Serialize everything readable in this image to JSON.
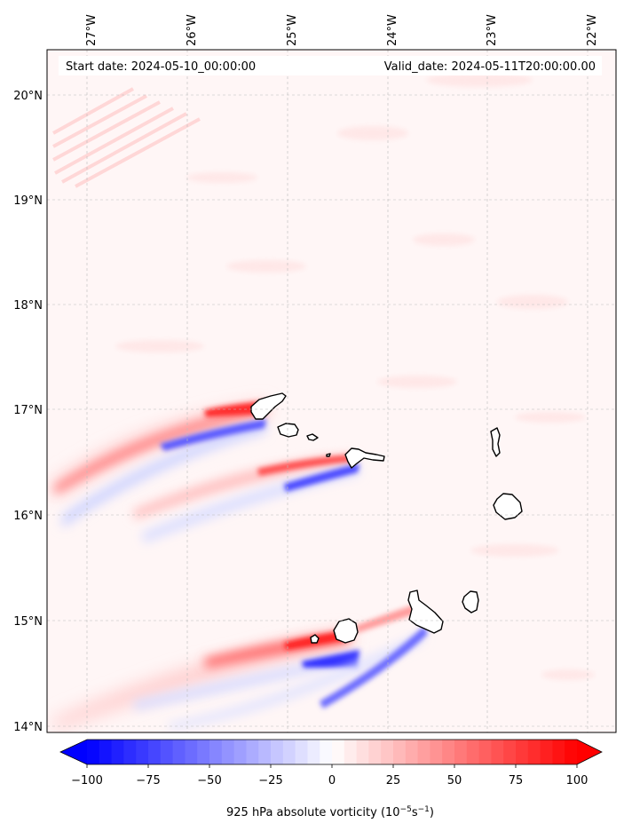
{
  "header": {
    "start_date": "Start date: 2024-05-10_00:00:00",
    "valid_date": "Valid_date: 2024-05-11T20:00:00.00"
  },
  "map": {
    "lon_range": [
      -27.5,
      -21.8
    ],
    "lat_range": [
      13.95,
      20.45
    ],
    "lon_ticks": [
      {
        "value": -27,
        "label": "27°W"
      },
      {
        "value": -26,
        "label": "26°W"
      },
      {
        "value": -25,
        "label": "25°W"
      },
      {
        "value": -24,
        "label": "24°W"
      },
      {
        "value": -23,
        "label": "23°W"
      },
      {
        "value": -22,
        "label": "22°W"
      }
    ],
    "lat_ticks": [
      {
        "value": 20,
        "label": "20°N"
      },
      {
        "value": 19,
        "label": "19°N"
      },
      {
        "value": 18,
        "label": "18°N"
      },
      {
        "value": 17,
        "label": "17°N"
      },
      {
        "value": 16,
        "label": "16°N"
      },
      {
        "value": 15,
        "label": "15°N"
      },
      {
        "value": 14,
        "label": "14°N"
      }
    ],
    "gridlines": true,
    "field": "925 hPa absolute vorticity",
    "islands": [
      "Santo Antão",
      "São Vicente",
      "Santa Luzia",
      "São Nicolau",
      "Sal",
      "Boa Vista",
      "Fogo",
      "Brava",
      "Santiago",
      "Maio"
    ]
  },
  "colorbar": {
    "label_text": "925 hPa absolute vorticity (10",
    "label_exp1": "−5",
    "label_mid": "s",
    "label_exp2": "−1",
    "label_close": ")",
    "ticks": [
      {
        "value": -100,
        "label": "−100"
      },
      {
        "value": -75,
        "label": "−75"
      },
      {
        "value": -50,
        "label": "−50"
      },
      {
        "value": -25,
        "label": "−25"
      },
      {
        "value": 0,
        "label": "0"
      },
      {
        "value": 25,
        "label": "25"
      },
      {
        "value": 50,
        "label": "50"
      },
      {
        "value": 75,
        "label": "75"
      },
      {
        "value": 100,
        "label": "100"
      }
    ],
    "range": [
      -100,
      100
    ],
    "extend": "both",
    "colormap": "bwr",
    "color_min": "#0000ff",
    "color_mid": "#ffffff",
    "color_max": "#ff0000"
  }
}
